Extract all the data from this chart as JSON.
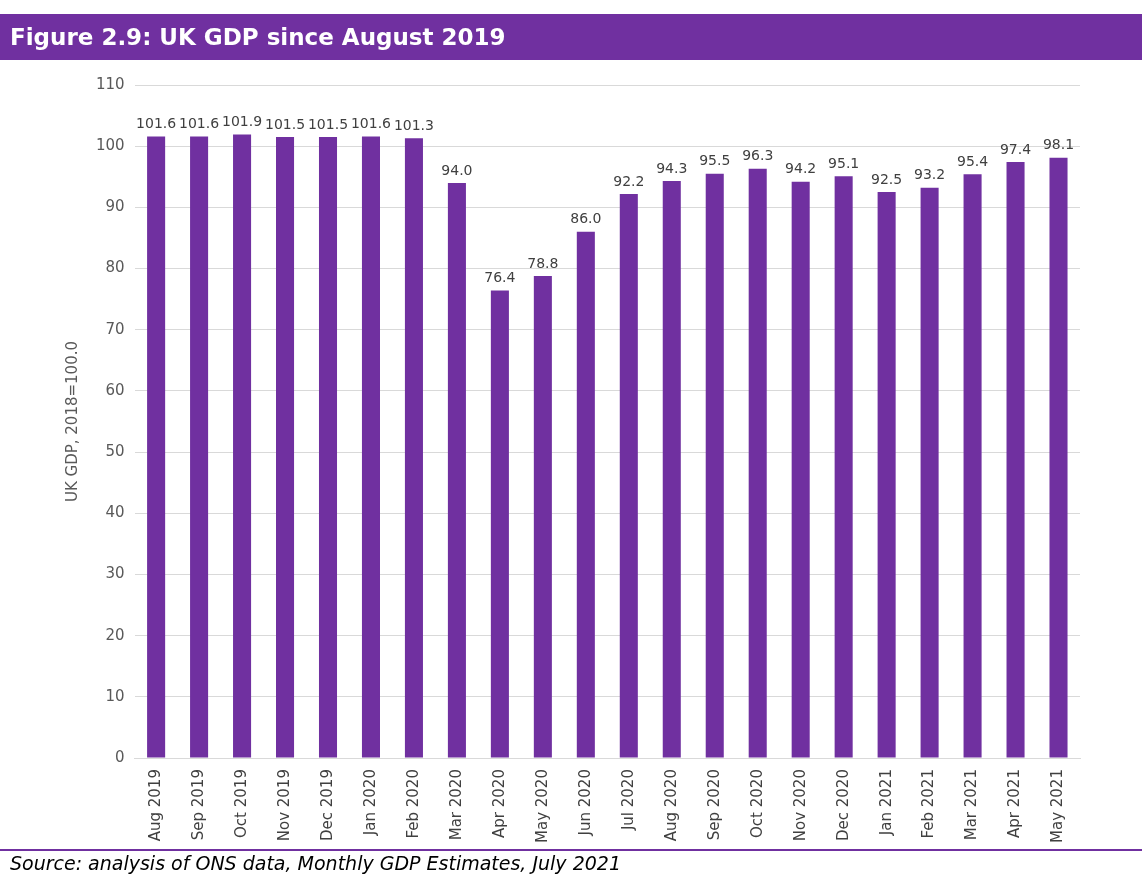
{
  "chart_data": {
    "type": "bar",
    "title": "Figure 2.9: UK GDP since August 2019",
    "ylabel": "UK GDP, 2018=100.0",
    "categories": [
      "Aug 2019",
      "Sep 2019",
      "Oct 2019",
      "Nov 2019",
      "Dec 2019",
      "Jan 2020",
      "Feb 2020",
      "Mar 2020",
      "Apr 2020",
      "May 2020",
      "Jun 2020",
      "Jul 2020",
      "Aug 2020",
      "Sep 2020",
      "Oct 2020",
      "Nov 2020",
      "Dec 2020",
      "Jan 2021",
      "Feb 2021",
      "Mar 2021",
      "Apr 2021",
      "May 2021"
    ],
    "values": [
      101.6,
      101.6,
      101.9,
      101.5,
      101.5,
      101.6,
      101.3,
      94.0,
      76.4,
      78.8,
      86.0,
      92.2,
      94.3,
      95.5,
      96.3,
      94.2,
      95.1,
      92.5,
      93.2,
      95.4,
      97.4,
      98.1
    ],
    "value_labels": [
      "101.6",
      "101.6",
      "101.9",
      "101.5",
      "101.5",
      "101.6",
      "101.3",
      "94.0",
      "76.4",
      "78.8",
      "86.0",
      "92.2",
      "94.3",
      "95.5",
      "96.3",
      "94.2",
      "95.1",
      "92.5",
      "93.2",
      "95.4",
      "97.4",
      "98.1"
    ],
    "color": "#7030a0",
    "ylim": [
      0,
      110
    ],
    "yticks": [
      0,
      10,
      20,
      30,
      40,
      50,
      60,
      70,
      80,
      90,
      100,
      110
    ],
    "grid": "y",
    "legend": false,
    "annotations": [
      "Source: analysis of ONS data, Monthly GDP Estimates, July 2021"
    ]
  }
}
